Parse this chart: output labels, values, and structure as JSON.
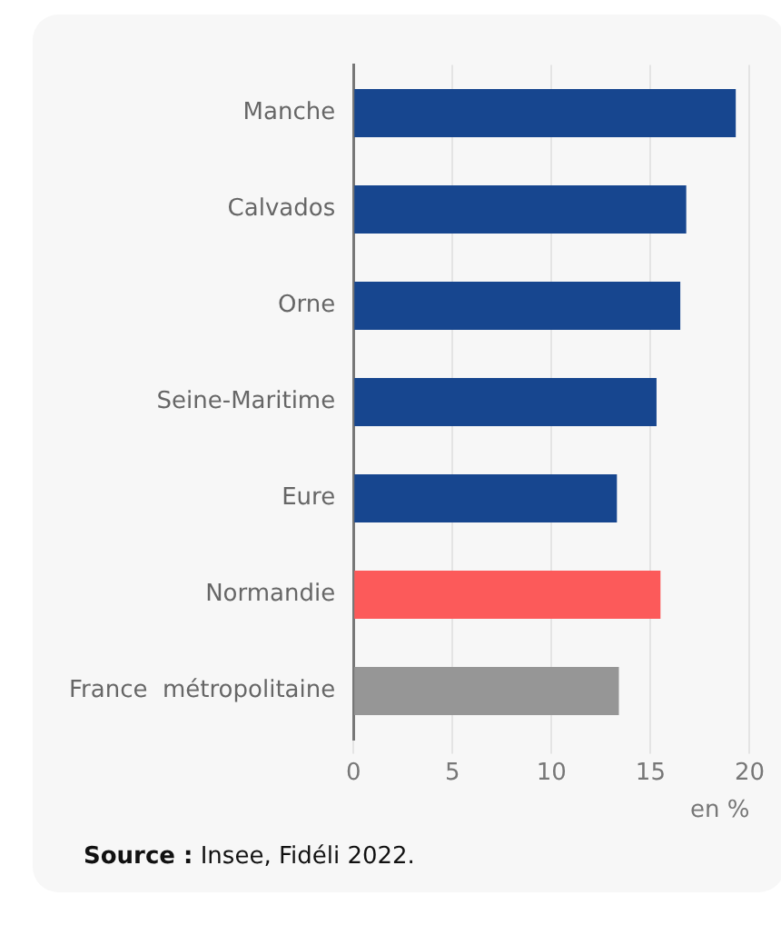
{
  "chart_data": {
    "type": "bar",
    "orientation": "horizontal",
    "categories": [
      "Manche",
      "Calvados",
      "Orne",
      "Seine-Maritime",
      "Eure",
      "Normandie",
      "France  métropolitaine"
    ],
    "values": [
      19.3,
      16.8,
      16.5,
      15.3,
      13.3,
      15.5,
      13.4
    ],
    "colors": [
      "#17468f",
      "#17468f",
      "#17468f",
      "#17468f",
      "#17468f",
      "#fc5a5a",
      "#969696"
    ],
    "xlim": [
      0,
      20
    ],
    "xticks": [
      0,
      5,
      10,
      15,
      20
    ],
    "xlabel": "en %",
    "grid": "x",
    "legend": false,
    "annotations": [
      "Source : Insee, Fidéli 2022."
    ]
  }
}
